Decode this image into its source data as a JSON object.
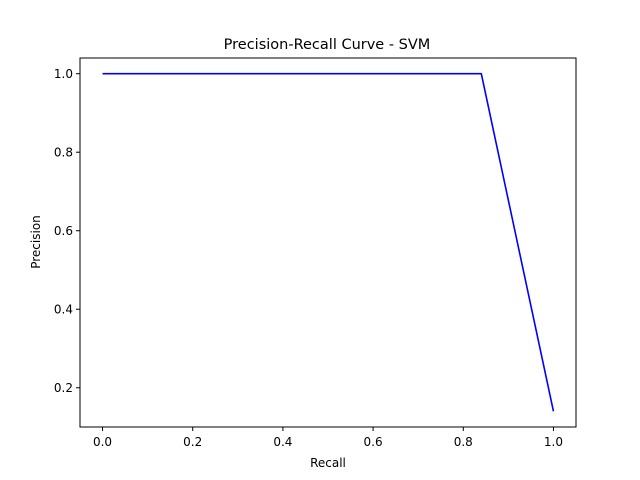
{
  "chart_data": {
    "type": "line",
    "title": "Precision-Recall Curve - SVM",
    "xlabel": "Recall",
    "ylabel": "Precision",
    "xlim": [
      -0.05,
      1.05
    ],
    "ylim": [
      0.1,
      1.04
    ],
    "xticks": [
      0.0,
      0.2,
      0.4,
      0.6,
      0.8,
      1.0
    ],
    "xtick_labels": [
      "0.0",
      "0.2",
      "0.4",
      "0.6",
      "0.8",
      "1.0"
    ],
    "yticks": [
      0.2,
      0.4,
      0.6,
      0.8,
      1.0
    ],
    "ytick_labels": [
      "0.2",
      "0.4",
      "0.6",
      "0.8",
      "1.0"
    ],
    "grid": false,
    "series": [
      {
        "color": "#0000ff",
        "x": [
          0.0,
          0.84,
          1.0
        ],
        "y": [
          1.0,
          1.0,
          0.14
        ]
      }
    ]
  }
}
